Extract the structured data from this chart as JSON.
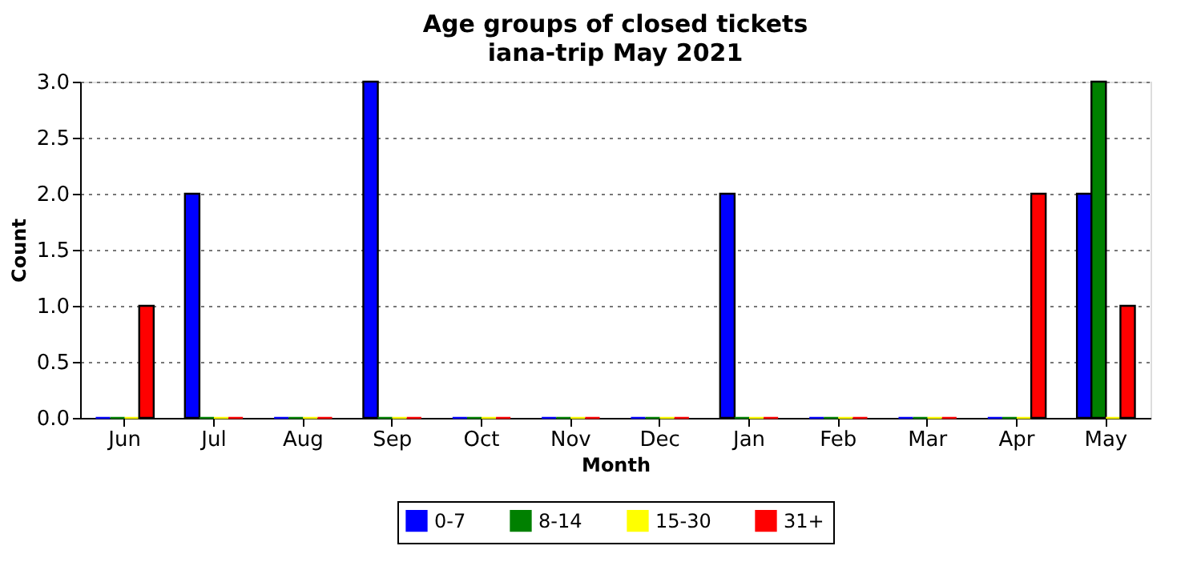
{
  "chart_data": {
    "type": "bar",
    "title": "Age groups of closed tickets",
    "subtitle": "iana-trip May 2021",
    "xlabel": "Month",
    "ylabel": "Count",
    "categories": [
      "Jun",
      "Jul",
      "Aug",
      "Sep",
      "Oct",
      "Nov",
      "Dec",
      "Jan",
      "Feb",
      "Mar",
      "Apr",
      "May"
    ],
    "series": [
      {
        "name": "0-7",
        "color": "#0000ff",
        "values": [
          0,
          2,
          0,
          3,
          0,
          0,
          0,
          2,
          0,
          0,
          0,
          2
        ]
      },
      {
        "name": "8-14",
        "color": "#008000",
        "values": [
          0,
          0,
          0,
          0,
          0,
          0,
          0,
          0,
          0,
          0,
          0,
          3
        ]
      },
      {
        "name": "15-30",
        "color": "#ffff00",
        "values": [
          0,
          0,
          0,
          0,
          0,
          0,
          0,
          0,
          0,
          0,
          0,
          0
        ]
      },
      {
        "name": "31+",
        "color": "#ff0000",
        "values": [
          1,
          0,
          0,
          0,
          0,
          0,
          0,
          0,
          0,
          0,
          2,
          1
        ]
      }
    ],
    "ylim": [
      0,
      3
    ],
    "yticks": [
      {
        "value": 0,
        "label": "0.0"
      },
      0.5,
      {
        "value": 1,
        "label": "1.0"
      },
      1.5,
      {
        "value": 2,
        "label": "2.0"
      },
      2.5,
      {
        "value": 3,
        "label": "3.0"
      }
    ],
    "grid": "y",
    "legend": "bottom"
  }
}
